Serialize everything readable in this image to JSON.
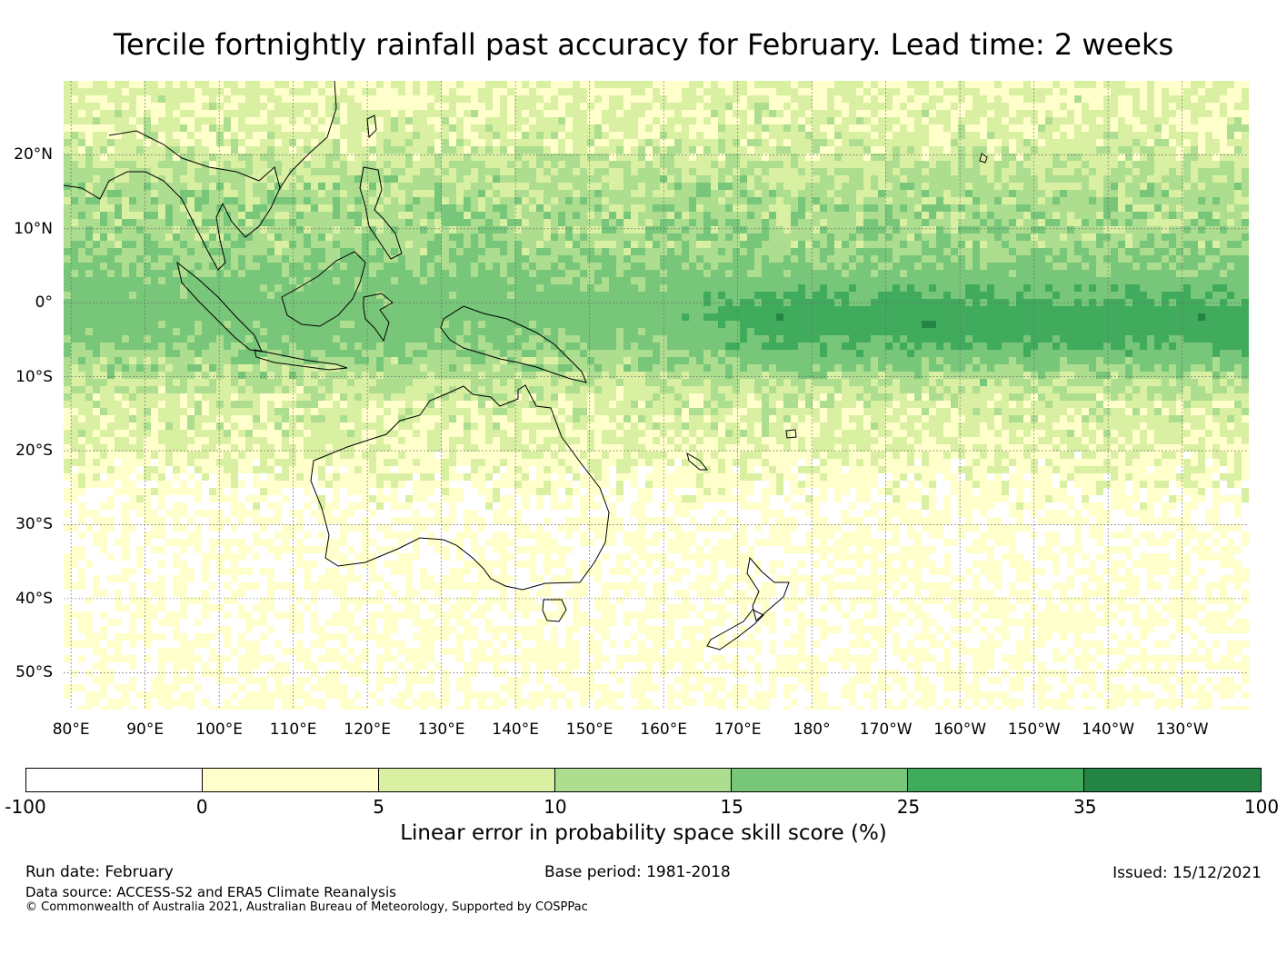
{
  "title": "Tercile fortnightly rainfall past accuracy for February. Lead time: 2 weeks",
  "map": {
    "lat_labels": [
      "20°N",
      "10°N",
      "0°",
      "10°S",
      "20°S",
      "30°S",
      "40°S",
      "50°S"
    ],
    "lat_values": [
      20,
      10,
      0,
      -10,
      -20,
      -30,
      -40,
      -50
    ],
    "lon_labels": [
      "80°E",
      "90°E",
      "100°E",
      "110°E",
      "120°E",
      "130°E",
      "140°E",
      "150°E",
      "160°E",
      "170°E",
      "180°",
      "170°W",
      "160°W",
      "150°W",
      "140°W",
      "130°W"
    ],
    "lon_values": [
      80,
      90,
      100,
      110,
      120,
      130,
      140,
      150,
      160,
      170,
      180,
      190,
      200,
      210,
      220,
      230
    ],
    "extent": {
      "lon_min": 79,
      "lon_max": 239,
      "lat_min": -55,
      "lat_max": 30
    }
  },
  "colorbar": {
    "ticks": [
      "-100",
      "0",
      "5",
      "10",
      "15",
      "25",
      "35",
      "100"
    ],
    "colors": [
      "#ffffff",
      "#ffffcc",
      "#d9f0a3",
      "#addd8e",
      "#78c679",
      "#41ab5d",
      "#238443"
    ],
    "label": "Linear error in probability space skill score (%)"
  },
  "footer": {
    "run_date": "Run date: February",
    "base_period": "Base period: 1981-2018",
    "issued": "Issued: 15/12/2021",
    "data_source": "Data source: ACCESS-S2 and ERA5 Climate Reanalysis",
    "copyright": "© Commonwealth of Australia 2021, Australian Bureau of Meteorology, Supported by COSPPac"
  }
}
